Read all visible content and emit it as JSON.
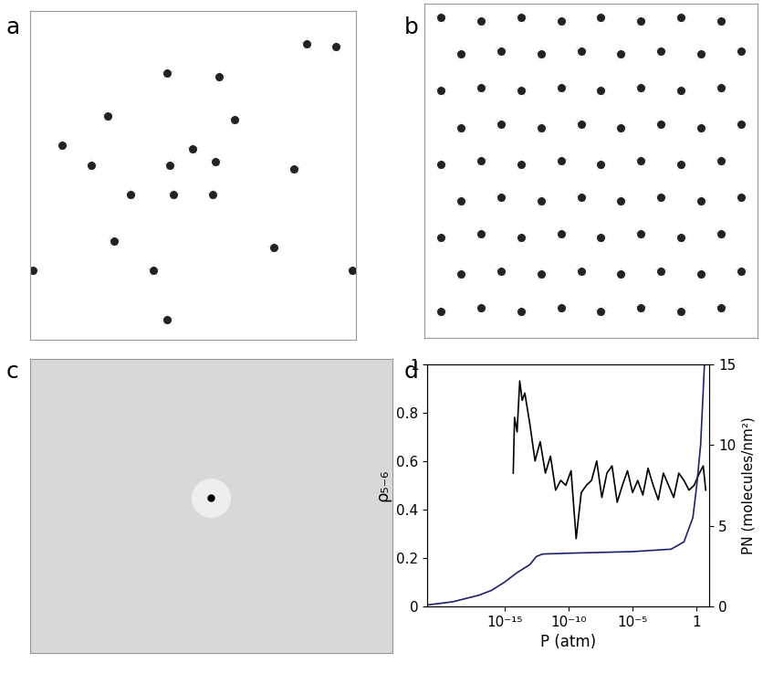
{
  "chart_data": [
    {
      "type": "image",
      "label": "a",
      "tick_labels": false,
      "xlim": [
        0,
        1
      ],
      "ylim": [
        0,
        1
      ],
      "x": [
        0.42,
        0.58,
        0.85,
        0.94,
        0.24,
        0.5,
        0.63,
        0.1,
        0.19,
        0.43,
        0.57,
        0.81,
        0.44,
        0.56,
        0.31,
        0.26,
        0.75,
        0.38,
        0.42,
        0.01,
        0.99
      ],
      "y": [
        0.81,
        0.8,
        0.9,
        0.89,
        0.68,
        0.58,
        0.67,
        0.59,
        0.53,
        0.53,
        0.54,
        0.52,
        0.44,
        0.44,
        0.44,
        0.3,
        0.28,
        0.21,
        0.06,
        0.21,
        0.21
      ]
    },
    {
      "type": "image",
      "label": "b",
      "tick_labels": false,
      "xlim": [
        0,
        1
      ],
      "ylim": [
        0,
        1
      ],
      "x": [
        0.05,
        0.17,
        0.29,
        0.41,
        0.53,
        0.65,
        0.77,
        0.89,
        0.11,
        0.23,
        0.35,
        0.47,
        0.59,
        0.71,
        0.83,
        0.95,
        0.05,
        0.17,
        0.29,
        0.41,
        0.53,
        0.65,
        0.77,
        0.89,
        0.11,
        0.23,
        0.35,
        0.47,
        0.59,
        0.71,
        0.83,
        0.95,
        0.05,
        0.17,
        0.29,
        0.41,
        0.53,
        0.65,
        0.77,
        0.89,
        0.11,
        0.23,
        0.35,
        0.47,
        0.59,
        0.71,
        0.83,
        0.95,
        0.05,
        0.17,
        0.29,
        0.41,
        0.53,
        0.65,
        0.77,
        0.89,
        0.11,
        0.23,
        0.35,
        0.47,
        0.59,
        0.71,
        0.83,
        0.95,
        0.05,
        0.17,
        0.29,
        0.41,
        0.53,
        0.65,
        0.77,
        0.89
      ],
      "y": [
        0.96,
        0.95,
        0.96,
        0.95,
        0.96,
        0.95,
        0.96,
        0.95,
        0.85,
        0.86,
        0.85,
        0.86,
        0.85,
        0.86,
        0.85,
        0.86,
        0.74,
        0.75,
        0.74,
        0.75,
        0.74,
        0.75,
        0.74,
        0.75,
        0.63,
        0.64,
        0.63,
        0.64,
        0.63,
        0.64,
        0.63,
        0.64,
        0.52,
        0.53,
        0.52,
        0.53,
        0.52,
        0.53,
        0.52,
        0.53,
        0.41,
        0.42,
        0.41,
        0.42,
        0.41,
        0.42,
        0.41,
        0.42,
        0.3,
        0.31,
        0.3,
        0.31,
        0.3,
        0.31,
        0.3,
        0.31,
        0.19,
        0.2,
        0.19,
        0.2,
        0.19,
        0.2,
        0.19,
        0.2,
        0.08,
        0.09,
        0.08,
        0.09,
        0.08,
        0.09,
        0.08,
        0.09
      ]
    },
    {
      "type": "image",
      "label": "c",
      "tick_labels": false,
      "xlim": [
        0,
        1
      ],
      "ylim": [
        0,
        1
      ],
      "x": [
        0.5
      ],
      "y": [
        0.53
      ]
    },
    {
      "type": "line",
      "label": "d",
      "log": "x",
      "xlabel": "P (atm)",
      "ylabel": "ρ₅₋₆",
      "y2label": "PN (molecules/nm²)",
      "xlim": [
        1e-21,
        10
      ],
      "xticks": [
        {
          "value": 1e-15,
          "label": "10⁻¹⁵"
        },
        {
          "value": 1e-10,
          "label": "10⁻¹⁰"
        },
        {
          "value": 1e-05,
          "label": "10⁻⁵"
        },
        1
      ],
      "ylim": [
        0,
        1
      ],
      "yticks": [
        0,
        0.2,
        0.4,
        0.6,
        0.8,
        1
      ],
      "y2lim": [
        0,
        15
      ],
      "y2ticks": [
        0,
        5,
        10,
        15
      ],
      "series": [
        {
          "color": "#000000",
          "x": [
            5e-15,
            6.3e-15,
            1e-14,
            1.6e-14,
            2.5e-14,
            4e-14,
            1e-13,
            2.5e-13,
            6.3e-13,
            1.6e-12,
            4e-12,
            1e-11,
            2.5e-11,
            6.3e-11,
            1.6e-10,
            4e-10,
            1e-09,
            2.5e-09,
            6.3e-09,
            1.6e-08,
            4e-08,
            1e-07,
            2.5e-07,
            6.3e-07,
            1.6e-06,
            4e-06,
            1e-05,
            2.5e-05,
            6.3e-05,
            0.00016,
            0.0004,
            0.001,
            0.0025,
            0.0063,
            0.016,
            0.04,
            0.1,
            0.25,
            0.63,
            1.6,
            3.2,
            5
          ],
          "values": [
            0.55,
            0.78,
            0.72,
            0.93,
            0.85,
            0.88,
            0.75,
            0.6,
            0.68,
            0.55,
            0.62,
            0.48,
            0.52,
            0.5,
            0.56,
            0.28,
            0.47,
            0.5,
            0.52,
            0.6,
            0.45,
            0.55,
            0.58,
            0.43,
            0.5,
            0.56,
            0.47,
            0.52,
            0.46,
            0.57,
            0.5,
            0.44,
            0.55,
            0.5,
            0.45,
            0.55,
            0.52,
            0.48,
            0.5,
            0.55,
            0.58,
            0.48
          ]
        },
        {
          "color": "#1f2070",
          "axis": "y2",
          "x": [
            1e-21,
            1e-19,
            1e-17,
            1e-16,
            1e-15,
            1e-14,
            1e-13,
            3.2e-13,
            1e-12,
            1e-10,
            1e-05,
            0.01,
            0.1,
            0.5,
            1,
            2,
            4
          ],
          "values": [
            0.1,
            0.3,
            0.7,
            1.0,
            1.5,
            2.1,
            2.6,
            3.1,
            3.25,
            3.3,
            3.4,
            3.55,
            4.0,
            5.5,
            7.5,
            10,
            15
          ]
        }
      ]
    }
  ]
}
